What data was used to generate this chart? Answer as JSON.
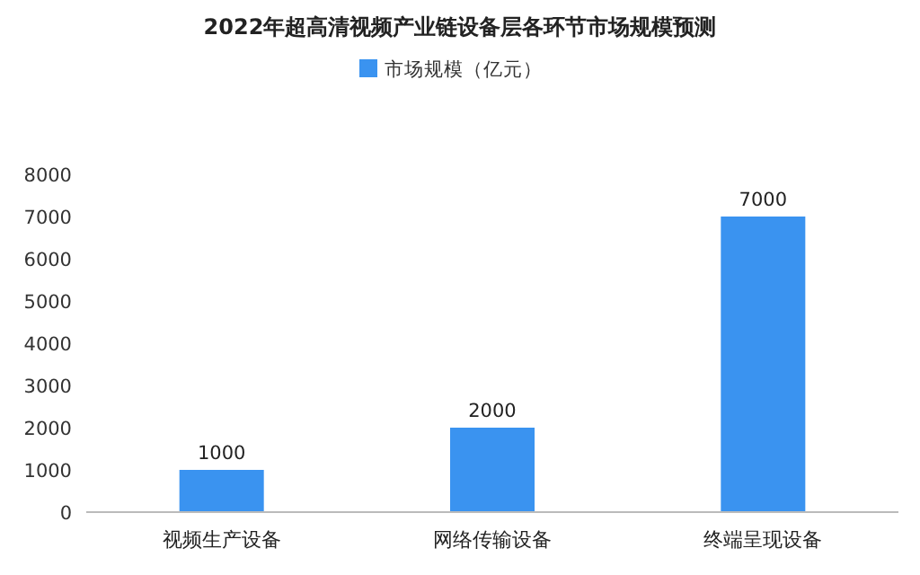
{
  "chart_data": {
    "type": "bar",
    "title": "2022年超高清视频产业链设备层各环节市场规模预测",
    "categories": [
      "视频生产设备",
      "网络传输设备",
      "终端呈现设备"
    ],
    "series": [
      {
        "name": "市场规模（亿元）",
        "color": "#3a93f0",
        "values": [
          1000,
          2000,
          7000
        ]
      }
    ],
    "ylim": [
      0,
      8000
    ],
    "yticks": [
      0,
      1000,
      2000,
      3000,
      4000,
      5000,
      6000,
      7000,
      8000
    ],
    "data_labels": true,
    "legend": "top",
    "grid": false
  }
}
